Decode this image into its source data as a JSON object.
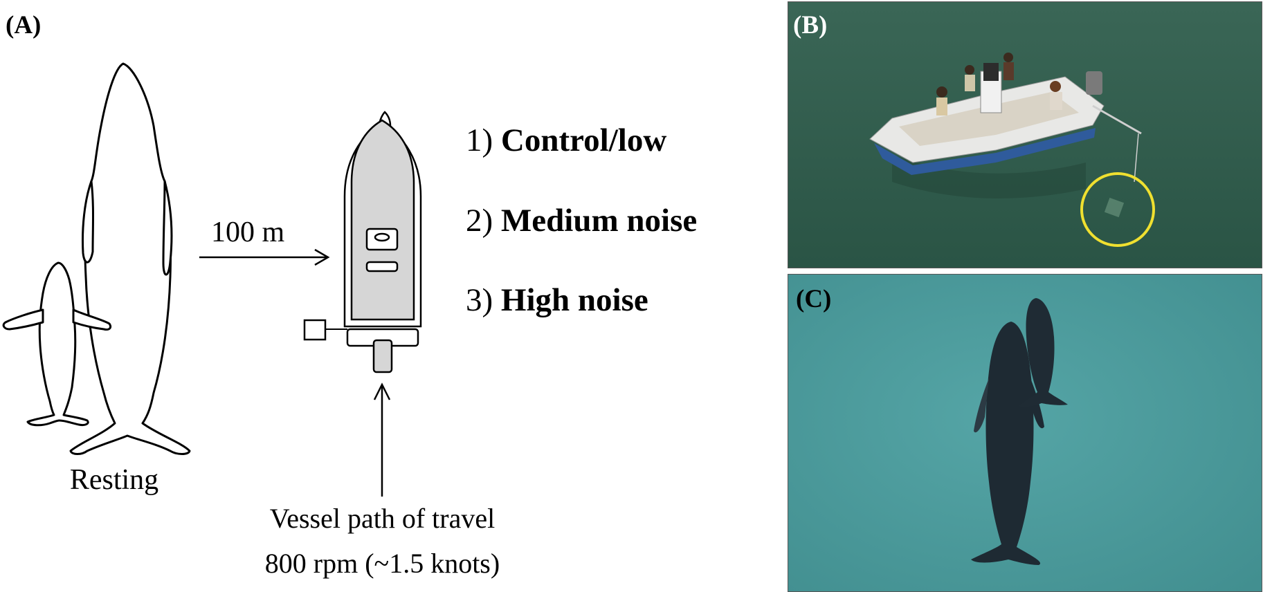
{
  "panels": {
    "a": {
      "label": "(A)"
    },
    "b": {
      "label": "(B)"
    },
    "c": {
      "label": "(C)"
    }
  },
  "diagram": {
    "whale_label": "Resting",
    "distance_label": "100 m",
    "vessel_path_line1": "Vessel path of travel",
    "vessel_path_line2": "800 rpm (~1.5 knots)",
    "conditions": [
      {
        "num": "1)",
        "label": "Control/low"
      },
      {
        "num": "2)",
        "label": "Medium noise"
      },
      {
        "num": "3)",
        "label": "High noise"
      }
    ]
  },
  "colors": {
    "boat_deck": "#d6d6d6",
    "water_b": "#2e5a4c",
    "water_c": "#4a9a9c",
    "highlight_circle": "#f0e030",
    "boat_hull": "#2f5b9c"
  }
}
